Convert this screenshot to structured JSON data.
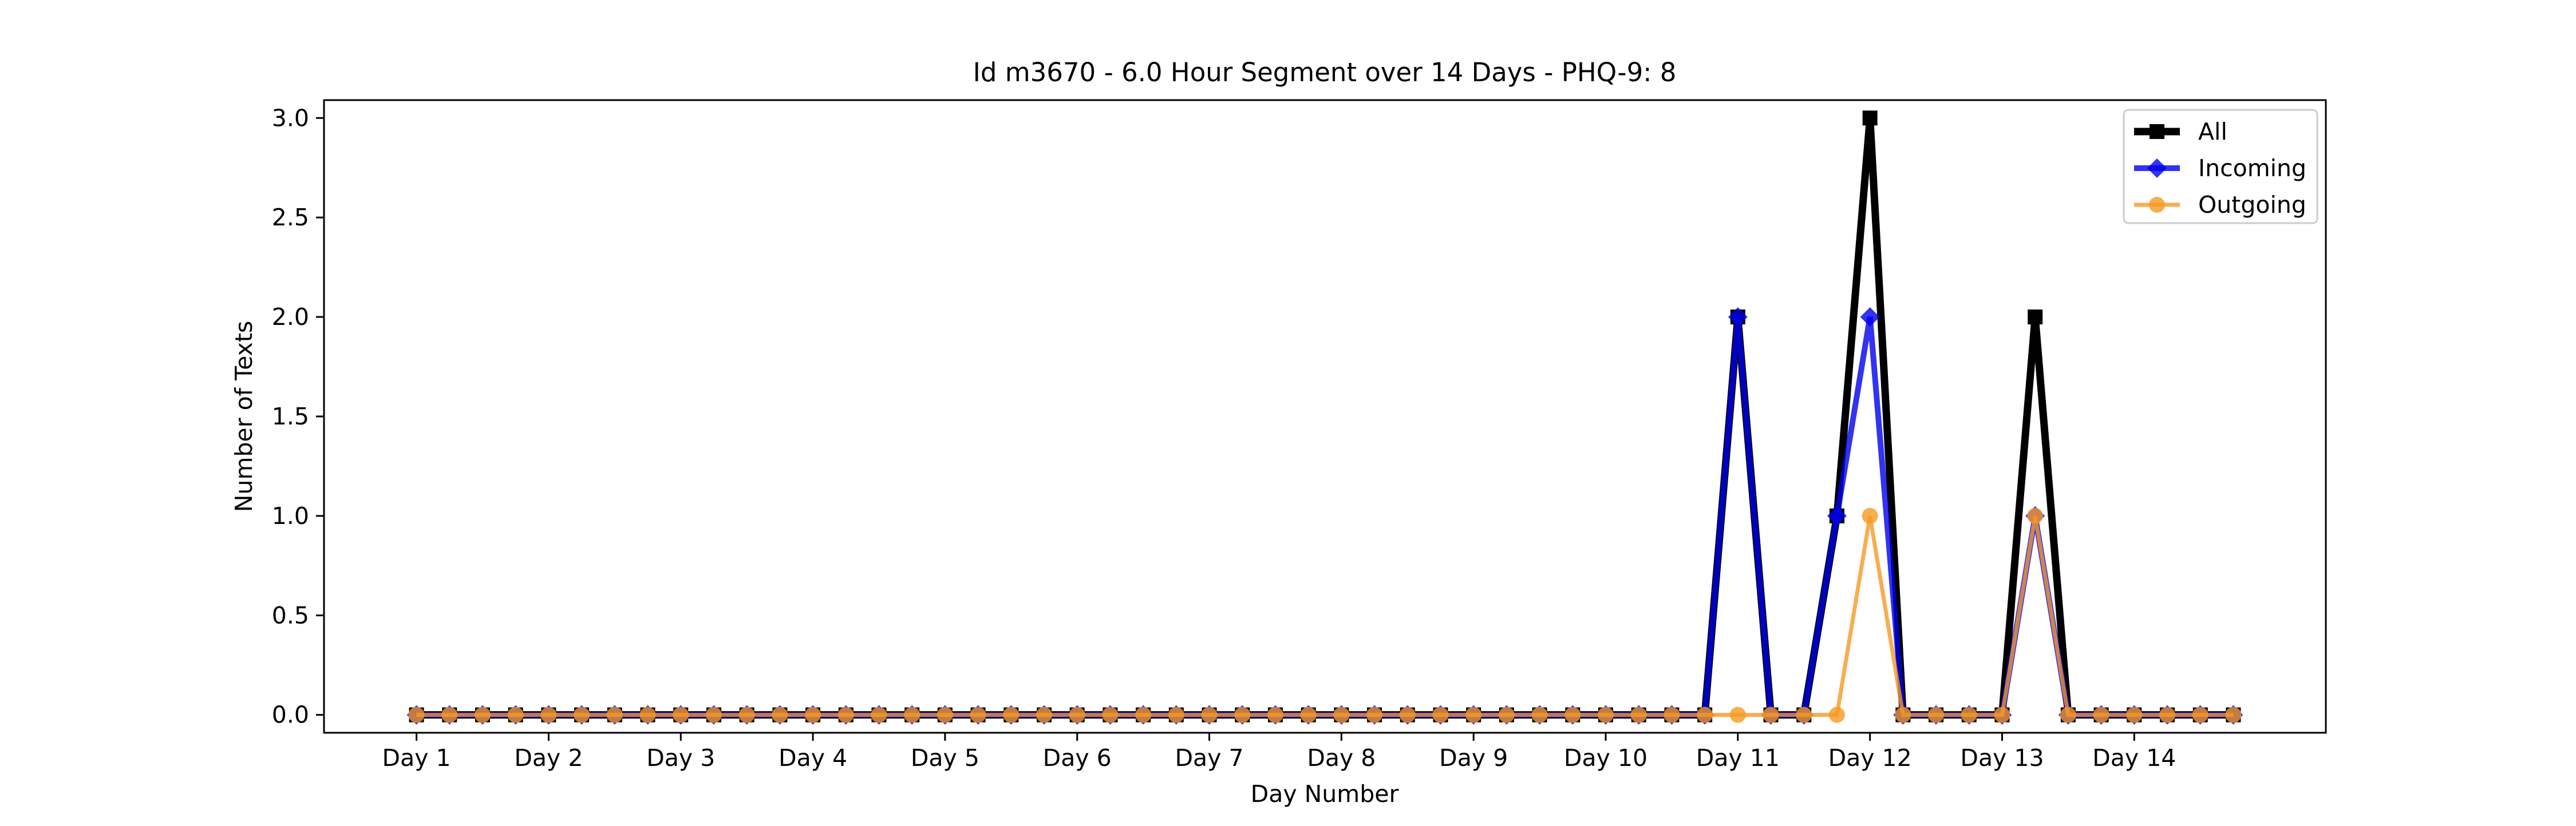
{
  "chart_data": {
    "type": "line",
    "title": "Id m3670 - 6.0 Hour Segment over 14 Days - PHQ-9: 8",
    "xlabel": "Day Number",
    "ylabel": "Number of Texts",
    "ylim": [
      -0.09,
      3.09
    ],
    "xlim": [
      -2.8,
      57.8
    ],
    "grid": false,
    "legend_position": "top-right",
    "x_tick_labels": [
      "Day 1",
      "Day 2",
      "Day 3",
      "Day 4",
      "Day 5",
      "Day 6",
      "Day 7",
      "Day 8",
      "Day 9",
      "Day 10",
      "Day 11",
      "Day 12",
      "Day 13",
      "Day 14"
    ],
    "x_tick_positions": [
      0,
      4,
      8,
      12,
      16,
      20,
      24,
      28,
      32,
      36,
      40,
      44,
      48,
      52
    ],
    "y_ticks": [
      0.0,
      0.5,
      1.0,
      1.5,
      2.0,
      2.5,
      3.0
    ],
    "series": [
      {
        "name": "All",
        "color": "#000000",
        "marker": "square",
        "values": [
          0,
          0,
          0,
          0,
          0,
          0,
          0,
          0,
          0,
          0,
          0,
          0,
          0,
          0,
          0,
          0,
          0,
          0,
          0,
          0,
          0,
          0,
          0,
          0,
          0,
          0,
          0,
          0,
          0,
          0,
          0,
          0,
          0,
          0,
          0,
          0,
          0,
          0,
          0,
          0,
          2,
          0,
          0,
          1,
          3,
          0,
          0,
          0,
          0,
          2,
          0,
          0,
          0,
          0,
          0,
          0
        ]
      },
      {
        "name": "Incoming",
        "color": "#0000ee",
        "marker": "diamond",
        "values": [
          0,
          0,
          0,
          0,
          0,
          0,
          0,
          0,
          0,
          0,
          0,
          0,
          0,
          0,
          0,
          0,
          0,
          0,
          0,
          0,
          0,
          0,
          0,
          0,
          0,
          0,
          0,
          0,
          0,
          0,
          0,
          0,
          0,
          0,
          0,
          0,
          0,
          0,
          0,
          0,
          2,
          0,
          0,
          1,
          2,
          0,
          0,
          0,
          0,
          1,
          0,
          0,
          0,
          0,
          0,
          0
        ]
      },
      {
        "name": "Outgoing",
        "color": "#f59a23",
        "marker": "circle",
        "values": [
          0,
          0,
          0,
          0,
          0,
          0,
          0,
          0,
          0,
          0,
          0,
          0,
          0,
          0,
          0,
          0,
          0,
          0,
          0,
          0,
          0,
          0,
          0,
          0,
          0,
          0,
          0,
          0,
          0,
          0,
          0,
          0,
          0,
          0,
          0,
          0,
          0,
          0,
          0,
          0,
          0,
          0,
          0,
          0,
          1,
          0,
          0,
          0,
          0,
          1,
          0,
          0,
          0,
          0,
          0,
          0
        ]
      }
    ]
  }
}
